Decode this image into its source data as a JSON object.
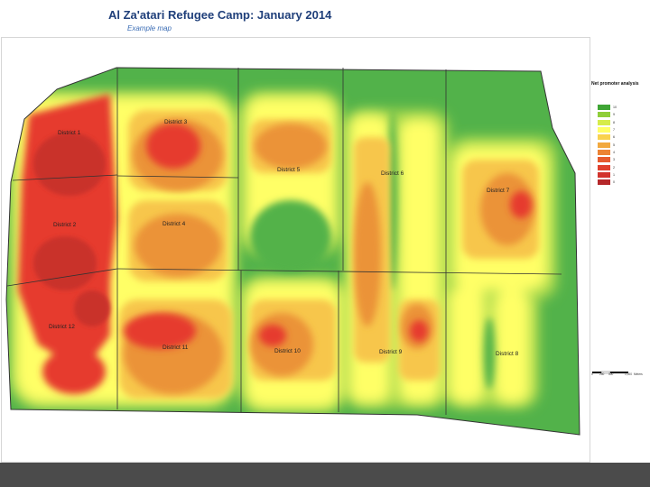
{
  "slide": {
    "title": "Al Za'atari Refugee Camp: January 2014",
    "subtitle": "Example map"
  },
  "map": {
    "colors": {
      "boundary": "#333333",
      "green": "#52b24a",
      "lightgreen": "#a9d94d",
      "yellow": "#ffff66",
      "lightorange": "#f7c64b",
      "orange": "#eb9338",
      "red": "#e63b2e",
      "darkred": "#c9302c"
    },
    "districts": [
      {
        "label": "District 1"
      },
      {
        "label": "District 2"
      },
      {
        "label": "District 3"
      },
      {
        "label": "District 4"
      },
      {
        "label": "District 5"
      },
      {
        "label": "District 6"
      },
      {
        "label": "District 7"
      },
      {
        "label": "District 8"
      },
      {
        "label": "District 9"
      },
      {
        "label": "District 10"
      },
      {
        "label": "District 11"
      },
      {
        "label": "District 12"
      }
    ]
  },
  "legend": {
    "title": "Net promoter analysis",
    "items": [
      {
        "label": "10",
        "color": "#3fa535"
      },
      {
        "label": "9",
        "color": "#8fce3a"
      },
      {
        "label": "8",
        "color": "#d6ec4a"
      },
      {
        "label": "7",
        "color": "#ffff66"
      },
      {
        "label": "6",
        "color": "#f9d24e"
      },
      {
        "label": "5",
        "color": "#f2a93f"
      },
      {
        "label": "4",
        "color": "#ec8335"
      },
      {
        "label": "3",
        "color": "#e65b2f"
      },
      {
        "label": "2",
        "color": "#e0402d"
      },
      {
        "label": "1",
        "color": "#d2332c"
      },
      {
        "label": "0",
        "color": "#b5282a"
      }
    ],
    "scale": {
      "ticks": [
        "0",
        "250",
        "500",
        "1,000"
      ],
      "unit": "Meters"
    }
  }
}
